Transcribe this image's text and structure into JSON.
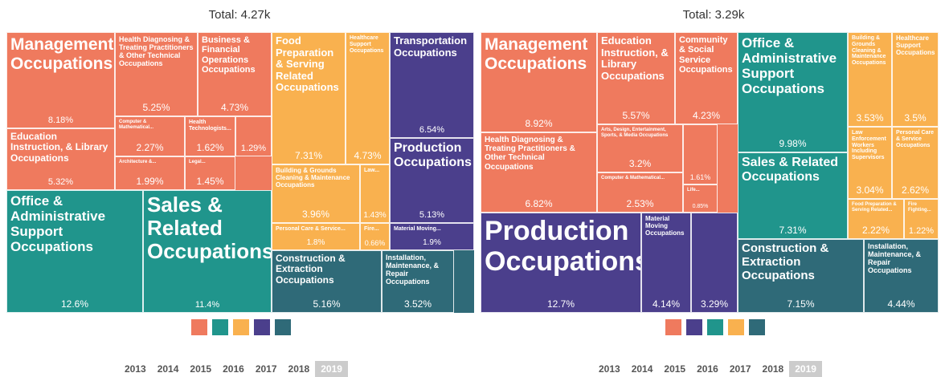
{
  "chart_data": [
    {
      "type": "treemap",
      "title": "Total: 4.27k",
      "tiles": [
        {
          "label": "Management Occupations",
          "value": 8.18,
          "value_label": "8.18%",
          "color": "#ef7a5e"
        },
        {
          "label": "Health Diagnosing & Treating Practitioners & Other Technical Occupations",
          "value": 5.25,
          "value_label": "5.25%",
          "color": "#ef7a5e"
        },
        {
          "label": "Business & Financial Operations Occupations",
          "value": 4.73,
          "value_label": "4.73%",
          "color": "#ef7a5e"
        },
        {
          "label": "Education Instruction, & Library Occupations",
          "value": 5.32,
          "value_label": "5.32%",
          "color": "#ef7a5e"
        },
        {
          "label": "Computer & Mathematical...",
          "value": 2.27,
          "value_label": "2.27%",
          "color": "#ef7a5e"
        },
        {
          "label": "Architecture &...",
          "value": 1.99,
          "value_label": "1.99%",
          "color": "#ef7a5e"
        },
        {
          "label": "Health Technologists...",
          "value": 1.62,
          "value_label": "1.62%",
          "color": "#ef7a5e"
        },
        {
          "label": "Legal...",
          "value": 1.45,
          "value_label": "1.45%",
          "color": "#ef7a5e"
        },
        {
          "label": null,
          "value": 1.29,
          "value_label": "1.29%",
          "color": "#ef7a5e"
        },
        {
          "label": "Food Preparation & Serving Related Occupations",
          "value": 7.31,
          "value_label": "7.31%",
          "color": "#f9b14f"
        },
        {
          "label": "Healthcare Support Occupations",
          "value": 4.73,
          "value_label": "4.73%",
          "color": "#f9b14f"
        },
        {
          "label": "Building & Grounds Cleaning & Maintenance Occupations",
          "value": 3.96,
          "value_label": "3.96%",
          "color": "#f9b14f"
        },
        {
          "label": "Law...",
          "value": 1.43,
          "value_label": "1.43%",
          "color": "#f9b14f"
        },
        {
          "label": "Personal Care & Service...",
          "value": 1.8,
          "value_label": "1.8%",
          "color": "#f9b14f"
        },
        {
          "label": "Fire...",
          "value": 0.66,
          "value_label": "0.66%",
          "color": "#f9b14f"
        },
        {
          "label": "Transportation Occupations",
          "value": 6.54,
          "value_label": "6.54%",
          "color": "#4b3f8c"
        },
        {
          "label": "Production Occupations",
          "value": 5.13,
          "value_label": "5.13%",
          "color": "#4b3f8c"
        },
        {
          "label": "Material Moving...",
          "value": 1.9,
          "value_label": "1.9%",
          "color": "#4b3f8c"
        },
        {
          "label": "Office & Administrative Support Occupations",
          "value": 12.6,
          "value_label": "12.6%",
          "color": "#20958c"
        },
        {
          "label": "Sales & Related Occupations",
          "value": 11.4,
          "value_label": "11.4%",
          "color": "#20958c"
        },
        {
          "label": "Construction & Extraction Occupations",
          "value": 5.16,
          "value_label": "5.16%",
          "color": "#2f6a78"
        },
        {
          "label": "Installation, Maintenance, & Repair Occupations",
          "value": 3.52,
          "value_label": "3.52%",
          "color": "#2f6a78"
        }
      ],
      "years": [
        "2013",
        "2014",
        "2015",
        "2016",
        "2017",
        "2018",
        "2019"
      ],
      "selected_year": 6
    },
    {
      "type": "treemap",
      "title": "Total: 3.29k",
      "tiles": [
        {
          "label": "Management Occupations",
          "value": 8.92,
          "value_label": "8.92%",
          "color": "#ef7a5e"
        },
        {
          "label": "Education Instruction, & Library Occupations",
          "value": 5.57,
          "value_label": "5.57%",
          "color": "#ef7a5e"
        },
        {
          "label": "Community & Social Service Occupations",
          "value": 4.23,
          "value_label": "4.23%",
          "color": "#ef7a5e"
        },
        {
          "label": "Health Diagnosing & Treating Practitioners & Other Technical Occupations",
          "value": 6.82,
          "value_label": "6.82%",
          "color": "#ef7a5e"
        },
        {
          "label": "Arts, Design, Entertainment, Sports, & Media Occupations",
          "value": 3.2,
          "value_label": "3.2%",
          "color": "#ef7a5e"
        },
        {
          "label": "Computer & Mathematical...",
          "value": 2.53,
          "value_label": "2.53%",
          "color": "#ef7a5e"
        },
        {
          "label": null,
          "value": 1.61,
          "value_label": "1.61%",
          "color": "#ef7a5e"
        },
        {
          "label": "Life...",
          "value": 0.85,
          "value_label": "0.85%",
          "color": "#ef7a5e"
        },
        {
          "label": "Production Occupations",
          "value": 12.7,
          "value_label": "12.7%",
          "color": "#4b3f8c"
        },
        {
          "label": "Material Moving Occupations",
          "value": 4.14,
          "value_label": "4.14%",
          "color": "#4b3f8c"
        },
        {
          "label": null,
          "value": 3.29,
          "value_label": "3.29%",
          "color": "#4b3f8c"
        },
        {
          "label": "Office & Administrative Support Occupations",
          "value": 9.98,
          "value_label": "9.98%",
          "color": "#20958c"
        },
        {
          "label": "Sales & Related Occupations",
          "value": 7.31,
          "value_label": "7.31%",
          "color": "#20958c"
        },
        {
          "label": "Building & Grounds Cleaning & Maintenance Occupations",
          "value": 3.53,
          "value_label": "3.53%",
          "color": "#f9b14f"
        },
        {
          "label": "Healthcare Support Occupations",
          "value": 3.5,
          "value_label": "3.5%",
          "color": "#f9b14f"
        },
        {
          "label": "Law Enforcement Workers Including Supervisors",
          "value": 3.04,
          "value_label": "3.04%",
          "color": "#f9b14f"
        },
        {
          "label": "Personal Care & Service Occupations",
          "value": 2.62,
          "value_label": "2.62%",
          "color": "#f9b14f"
        },
        {
          "label": "Food Preparation & Serving Related...",
          "value": 2.22,
          "value_label": "2.22%",
          "color": "#f9b14f"
        },
        {
          "label": "Fire Fighting...",
          "value": 1.22,
          "value_label": "1.22%",
          "color": "#f9b14f"
        },
        {
          "label": "Construction & Extraction Occupations",
          "value": 7.15,
          "value_label": "7.15%",
          "color": "#2f6a78"
        },
        {
          "label": "Installation, Maintenance, & Repair Occupations",
          "value": 4.44,
          "value_label": "4.44%",
          "color": "#2f6a78"
        }
      ],
      "years": [
        "2013",
        "2014",
        "2015",
        "2016",
        "2017",
        "2018",
        "2019"
      ],
      "selected_year": 6
    }
  ]
}
